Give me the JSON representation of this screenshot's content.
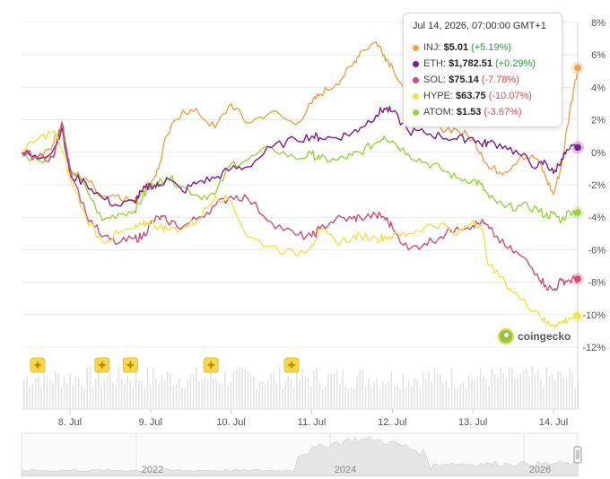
{
  "colors": {
    "INJ": "#f0a24a",
    "ETH": "#7b1f8a",
    "SOL": "#cf4d78",
    "HYPE": "#f5e14a",
    "ATOM": "#9ad23e"
  },
  "tooltip": {
    "title": "Jul 14, 2026, 07:00:00 GMT+1",
    "rows": [
      {
        "name": "INJ:",
        "price": "$5.01",
        "change": "(+5.19%)",
        "dir": "pos"
      },
      {
        "name": "ETH:",
        "price": "$1,782.51",
        "change": "(+0.29%)",
        "dir": "pos"
      },
      {
        "name": "SOL:",
        "price": "$75.14",
        "change": "(-7.78%)",
        "dir": "neg"
      },
      {
        "name": "HYPE:",
        "price": "$63.75",
        "change": "(-10.07%)",
        "dir": "neg"
      },
      {
        "name": "ATOM:",
        "price": "$1.53",
        "change": "(-3.67%)",
        "dir": "neg"
      }
    ]
  },
  "watermark": "coingecko",
  "event_marker_icon": "star-badge-icon",
  "navigator": {
    "year_labels": [
      "2022",
      "2024",
      "2026"
    ]
  },
  "chart_data": {
    "type": "line",
    "y_unit": "%",
    "ylim": [
      -12,
      8
    ],
    "y_ticks": [
      "8%",
      "6%",
      "4%",
      "2%",
      "0%",
      "-2%",
      "-4%",
      "-6%",
      "-8%",
      "-10%",
      "-12%"
    ],
    "x_tick_labels": [
      "8. Jul",
      "9. Jul",
      "10. Jul",
      "11. Jul",
      "12. Jul",
      "13. Jul",
      "14. Jul"
    ],
    "x_range_days": [
      7.4,
      14.3
    ],
    "event_markers_day": [
      7.6,
      8.4,
      8.75,
      9.75,
      10.75
    ],
    "series": [
      {
        "name": "INJ",
        "x": [
          7.4,
          7.6,
          7.8,
          7.9,
          8.0,
          8.2,
          8.4,
          8.6,
          8.8,
          8.9,
          9.0,
          9.1,
          9.2,
          9.4,
          9.6,
          9.8,
          10.0,
          10.2,
          10.5,
          10.8,
          11.0,
          11.1,
          11.3,
          11.5,
          11.6,
          11.8,
          11.9,
          12.0,
          12.2,
          12.4,
          12.6,
          12.8,
          13.0,
          13.1,
          13.2,
          13.4,
          13.6,
          13.8,
          13.9,
          14.0,
          14.1,
          14.2,
          14.3
        ],
        "values": [
          0,
          -0.3,
          0.6,
          1.9,
          -1.2,
          -1.6,
          -2.7,
          -2.6,
          -3.1,
          -2.3,
          -1.9,
          -1.0,
          1.0,
          2.6,
          2.4,
          1.5,
          3.0,
          1.8,
          2.5,
          1.7,
          3.0,
          3.6,
          4.2,
          5.3,
          6.2,
          6.8,
          6.0,
          5.3,
          3.5,
          2.0,
          1.5,
          1.4,
          0.8,
          0,
          -1.0,
          -1.2,
          -0.2,
          -0.4,
          -1.5,
          -2.6,
          -0.8,
          2.5,
          5.2
        ]
      },
      {
        "name": "ETH",
        "x": [
          7.4,
          7.6,
          7.8,
          7.9,
          8.0,
          8.2,
          8.4,
          8.6,
          8.8,
          8.9,
          9.0,
          9.1,
          9.2,
          9.4,
          9.6,
          9.8,
          10.0,
          10.2,
          10.5,
          10.8,
          11.0,
          11.1,
          11.3,
          11.5,
          11.6,
          11.8,
          11.9,
          12.0,
          12.2,
          12.4,
          12.6,
          12.8,
          13.0,
          13.1,
          13.2,
          13.4,
          13.6,
          13.8,
          13.9,
          14.0,
          14.1,
          14.2,
          14.3
        ],
        "values": [
          0,
          -0.4,
          0.2,
          1.5,
          -1.4,
          -1.9,
          -2.8,
          -3.3,
          -3.0,
          -2.4,
          -2.0,
          -2.1,
          -1.6,
          -2.4,
          -1.8,
          -1.6,
          -1.0,
          -0.9,
          0.3,
          0.8,
          1.0,
          0.9,
          0.9,
          1.2,
          1.5,
          2.3,
          2.7,
          2.5,
          1.3,
          1.2,
          1.0,
          0.8,
          0.9,
          0.5,
          0.6,
          0.4,
          -0.2,
          -0.9,
          -0.6,
          -1.3,
          -0.4,
          0.2,
          0.3
        ]
      },
      {
        "name": "SOL",
        "x": [
          7.4,
          7.6,
          7.8,
          7.9,
          8.0,
          8.2,
          8.4,
          8.6,
          8.8,
          8.9,
          9.0,
          9.1,
          9.2,
          9.4,
          9.6,
          9.8,
          10.0,
          10.2,
          10.5,
          10.8,
          11.0,
          11.1,
          11.3,
          11.5,
          11.6,
          11.8,
          11.9,
          12.0,
          12.2,
          12.4,
          12.6,
          12.8,
          13.0,
          13.1,
          13.2,
          13.4,
          13.6,
          13.8,
          13.9,
          14.0,
          14.1,
          14.2,
          14.3
        ],
        "values": [
          0,
          -0.3,
          -0.3,
          1.8,
          -0.9,
          -3.8,
          -5.2,
          -5.6,
          -5.3,
          -5.2,
          -4.4,
          -4.0,
          -4.2,
          -4.6,
          -4.0,
          -3.3,
          -2.7,
          -2.8,
          -4.3,
          -5.1,
          -5.2,
          -4.7,
          -4.1,
          -4.1,
          -4.0,
          -3.9,
          -4.0,
          -4.6,
          -6.0,
          -5.6,
          -5.2,
          -4.6,
          -4.5,
          -4.3,
          -4.7,
          -5.8,
          -6.4,
          -7.5,
          -8.2,
          -8.5,
          -7.9,
          -7.9,
          -7.8
        ]
      },
      {
        "name": "HYPE",
        "x": [
          7.4,
          7.6,
          7.8,
          7.9,
          8.0,
          8.2,
          8.4,
          8.6,
          8.8,
          8.9,
          9.0,
          9.1,
          9.2,
          9.4,
          9.6,
          9.8,
          10.0,
          10.2,
          10.5,
          10.8,
          11.0,
          11.1,
          11.3,
          11.5,
          11.6,
          11.8,
          11.9,
          12.0,
          12.2,
          12.4,
          12.6,
          12.8,
          13.0,
          13.1,
          13.2,
          13.4,
          13.6,
          13.8,
          13.9,
          14.0,
          14.1,
          14.2,
          14.3
        ],
        "values": [
          0,
          0.8,
          1.3,
          0.2,
          -1.6,
          -4.0,
          -5.5,
          -5.0,
          -4.7,
          -4.5,
          -4.2,
          -4.6,
          -4.7,
          -4.7,
          -4.1,
          -2.7,
          -3.0,
          -5.2,
          -5.8,
          -6.3,
          -5.7,
          -4.8,
          -5.5,
          -5.3,
          -5.1,
          -5.3,
          -5.2,
          -5.2,
          -5.0,
          -4.6,
          -4.4,
          -5.1,
          -4.2,
          -4.5,
          -7.0,
          -8.0,
          -9.1,
          -9.8,
          -10.5,
          -10.6,
          -10.5,
          -10.2,
          -10.1
        ]
      },
      {
        "name": "ATOM",
        "x": [
          7.4,
          7.6,
          7.8,
          7.9,
          8.0,
          8.2,
          8.4,
          8.6,
          8.8,
          8.9,
          9.0,
          9.1,
          9.2,
          9.4,
          9.6,
          9.8,
          10.0,
          10.2,
          10.5,
          10.8,
          11.0,
          11.1,
          11.3,
          11.5,
          11.6,
          11.8,
          11.9,
          12.0,
          12.2,
          12.4,
          12.6,
          12.8,
          13.0,
          13.1,
          13.2,
          13.4,
          13.6,
          13.8,
          13.9,
          14.0,
          14.1,
          14.2,
          14.3
        ],
        "values": [
          0,
          -0.5,
          -0.2,
          1.7,
          -1.0,
          -2.2,
          -4.2,
          -3.8,
          -3.6,
          -2.8,
          -2.1,
          -1.9,
          -1.5,
          -2.1,
          -2.7,
          -2.6,
          -0.7,
          -0.5,
          0.3,
          -0.4,
          -0.1,
          -0.4,
          -0.5,
          -0.2,
          0,
          0.6,
          1.0,
          0.7,
          -0.1,
          -0.6,
          -1.0,
          -1.6,
          -1.7,
          -2.0,
          -2.8,
          -3.4,
          -3.3,
          -3.5,
          -3.9,
          -3.8,
          -4.2,
          -3.6,
          -3.7
        ]
      }
    ]
  }
}
